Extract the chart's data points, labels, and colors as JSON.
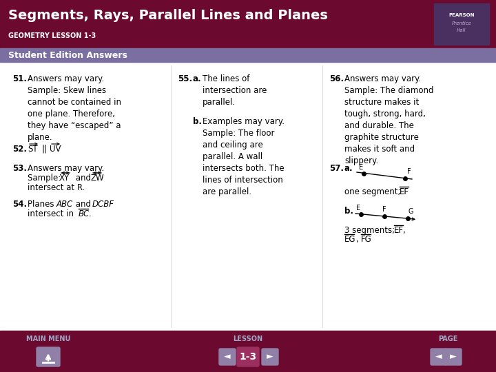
{
  "title": "Segments, Rays, Parallel Lines and Planes",
  "subtitle": "GEOMETRY LESSON 1-3",
  "section_label": "Student Edition Answers",
  "header_bg": "#6B0A2E",
  "section_bg": "#7B6FA0",
  "footer_bg": "#6B0A2E",
  "body_bg": "#FFFFFF",
  "header_text_color": "#FFFFFF",
  "section_text_color": "#FFFFFF",
  "body_text_color": "#000000",
  "answers": [
    {
      "num": "51.",
      "bold": true,
      "text": "Answers may vary.\nSample: Skew lines\ncannot be contained in\none plane. Therefore,\nthey have “escaped” a\nplane."
    },
    {
      "num": "52.",
      "bold": true,
      "text": "ST || UV",
      "has_arrows": true
    },
    {
      "num": "53.",
      "bold": true,
      "text": "Answers may vary.\nSample: XY and ZW\nintersect at R.",
      "has_arrows2": true
    },
    {
      "num": "54.",
      "bold": true,
      "text": "Planes ABC and DCBF\nintersect in BC.",
      "has_segment": true
    }
  ],
  "col2": [
    {
      "num": "55.",
      "bold": true,
      "sub": "a.",
      "text": "The lines of\nintersection are\nparallel."
    },
    {
      "sub": "b.",
      "text": "Examples may vary.\nSample: The floor\nand ceiling are\nparallel. A wall\nintersects both. The\nlines of intersection\nare parallel."
    }
  ],
  "col3": [
    {
      "num": "56.",
      "bold": true,
      "text": "Answers may vary.\nSample: The diamond\nstructure makes it\ntough, strong, hard,\nand durable. The\ngraphite structure\nmakes it soft and\nslippery."
    },
    {
      "num": "57.",
      "bold": true,
      "sub": "a.",
      "text": "one segment; EF"
    },
    {
      "sub": "b.",
      "text": "3 segments; EF,\nEG, FG"
    }
  ],
  "footer_labels": [
    "MAIN MENU",
    "LESSON",
    "PAGE"
  ],
  "lesson_num": "1-3"
}
